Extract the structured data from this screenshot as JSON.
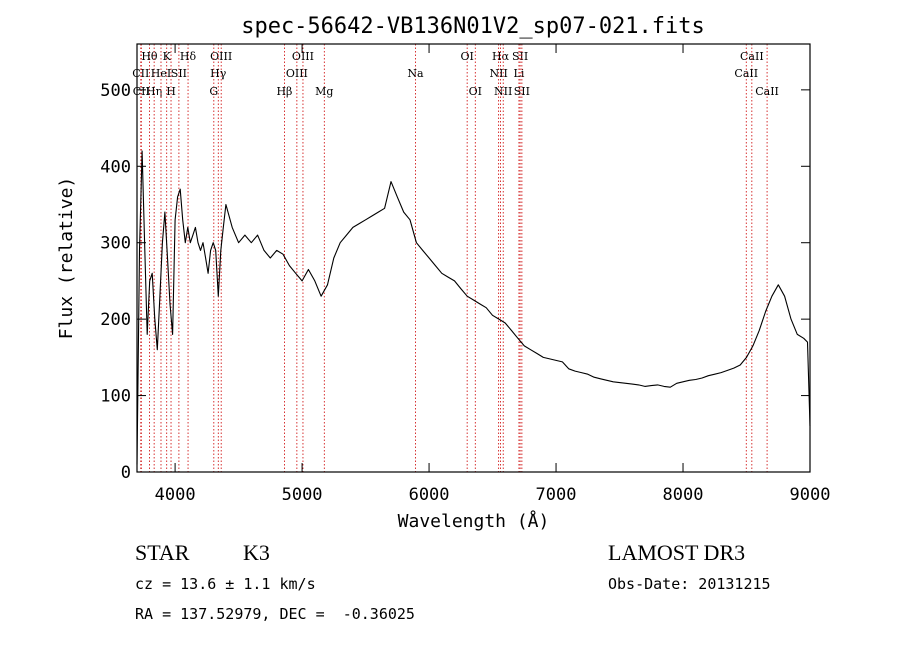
{
  "chart_data": {
    "type": "line",
    "title": "spec-56642-VB136N01V2_sp07-021.fits",
    "xlabel": "Wavelength (Å)",
    "ylabel": "Flux (relative)",
    "xlim": [
      3700,
      9000
    ],
    "ylim": [
      0,
      560
    ],
    "xticks": [
      4000,
      5000,
      6000,
      7000,
      8000,
      9000
    ],
    "yticks": [
      0,
      100,
      200,
      300,
      400,
      500
    ],
    "line_color": "#000000",
    "marker_color": "#cc0000",
    "series": [
      {
        "name": "flux",
        "x": [
          3700,
          3720,
          3740,
          3760,
          3780,
          3800,
          3820,
          3840,
          3860,
          3880,
          3900,
          3920,
          3940,
          3960,
          3980,
          4000,
          4020,
          4040,
          4060,
          4080,
          4100,
          4120,
          4140,
          4160,
          4180,
          4200,
          4220,
          4240,
          4260,
          4280,
          4300,
          4320,
          4340,
          4360,
          4380,
          4400,
          4450,
          4500,
          4550,
          4600,
          4650,
          4700,
          4750,
          4800,
          4850,
          4900,
          4950,
          5000,
          5050,
          5100,
          5150,
          5200,
          5250,
          5300,
          5350,
          5400,
          5450,
          5500,
          5550,
          5600,
          5650,
          5700,
          5750,
          5800,
          5850,
          5900,
          5950,
          6000,
          6050,
          6100,
          6150,
          6200,
          6250,
          6300,
          6350,
          6400,
          6450,
          6500,
          6550,
          6600,
          6650,
          6700,
          6750,
          6800,
          6850,
          6900,
          6950,
          7000,
          7050,
          7100,
          7150,
          7200,
          7250,
          7300,
          7350,
          7400,
          7450,
          7500,
          7550,
          7600,
          7650,
          7700,
          7750,
          7800,
          7850,
          7900,
          7950,
          8000,
          8050,
          8100,
          8150,
          8200,
          8250,
          8300,
          8350,
          8400,
          8450,
          8500,
          8550,
          8600,
          8650,
          8700,
          8750,
          8800,
          8850,
          8900,
          8950,
          8980,
          9000
        ],
        "values": [
          10,
          290,
          420,
          300,
          180,
          250,
          260,
          200,
          160,
          230,
          300,
          340,
          280,
          220,
          180,
          330,
          360,
          370,
          330,
          300,
          320,
          300,
          310,
          320,
          300,
          290,
          300,
          280,
          260,
          290,
          300,
          290,
          230,
          290,
          320,
          350,
          320,
          300,
          310,
          300,
          310,
          290,
          280,
          290,
          285,
          270,
          260,
          250,
          265,
          250,
          230,
          245,
          280,
          300,
          310,
          320,
          325,
          330,
          335,
          340,
          345,
          380,
          360,
          340,
          330,
          300,
          290,
          280,
          270,
          260,
          255,
          250,
          240,
          230,
          225,
          220,
          215,
          205,
          200,
          195,
          185,
          175,
          165,
          160,
          155,
          150,
          148,
          146,
          144,
          135,
          132,
          130,
          128,
          124,
          122,
          120,
          118,
          117,
          116,
          115,
          114,
          112,
          113,
          114,
          112,
          111,
          116,
          118,
          120,
          121,
          123,
          126,
          128,
          130,
          133,
          136,
          140,
          150,
          165,
          185,
          210,
          230,
          245,
          230,
          200,
          180,
          175,
          170,
          60
        ]
      }
    ],
    "lines": [
      {
        "label": "Hθ",
        "x": 3798,
        "row": 1
      },
      {
        "label": "CII",
        "x": 3730,
        "row": 2
      },
      {
        "label": "CII",
        "x": 3734,
        "row": 3
      },
      {
        "label": "Hη",
        "x": 3835,
        "row": 3
      },
      {
        "label": "K",
        "x": 3934,
        "row": 1
      },
      {
        "label": "HeI",
        "x": 3889,
        "row": 2
      },
      {
        "label": "H",
        "x": 3968,
        "row": 3
      },
      {
        "label": "SII",
        "x": 4030,
        "row": 2
      },
      {
        "label": "Hδ",
        "x": 4102,
        "row": 1
      },
      {
        "label": "OIII",
        "x": 4363,
        "row": 1
      },
      {
        "label": "Hγ",
        "x": 4340,
        "row": 2
      },
      {
        "label": "G",
        "x": 4305,
        "row": 3
      },
      {
        "label": "Hβ",
        "x": 4861,
        "row": 3
      },
      {
        "label": "OIII",
        "x": 5007,
        "row": 1
      },
      {
        "label": "OIII",
        "x": 4959,
        "row": 2
      },
      {
        "label": "Mg",
        "x": 5175,
        "row": 3
      },
      {
        "label": "Na",
        "x": 5893,
        "row": 2
      },
      {
        "label": "OI",
        "x": 6300,
        "row": 1
      },
      {
        "label": "OI",
        "x": 6364,
        "row": 3
      },
      {
        "label": "Hα",
        "x": 6563,
        "row": 1
      },
      {
        "label": "NII",
        "x": 6548,
        "row": 2
      },
      {
        "label": "NII",
        "x": 6584,
        "row": 3
      },
      {
        "label": "SII",
        "x": 6717,
        "row": 1
      },
      {
        "label": "Li",
        "x": 6708,
        "row": 2
      },
      {
        "label": "SII",
        "x": 6731,
        "row": 3
      },
      {
        "label": "CaII",
        "x": 8542,
        "row": 1
      },
      {
        "label": "CaII",
        "x": 8498,
        "row": 2
      },
      {
        "label": "CaII",
        "x": 8662,
        "row": 3
      }
    ]
  },
  "info": {
    "object_class": "STAR",
    "subclass": "K3",
    "survey": "LAMOST DR3",
    "cz": "cz = 13.6 ± 1.1 km/s",
    "obs_date": "Obs-Date: 20131215",
    "coords": "RA = 137.52979, DEC =  -0.36025"
  }
}
